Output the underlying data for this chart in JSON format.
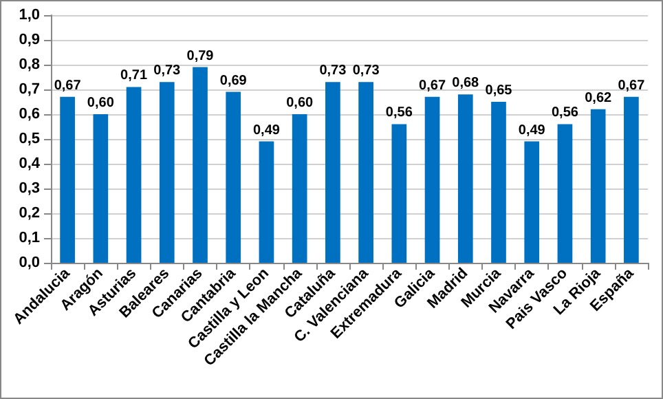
{
  "chart_data": {
    "type": "bar",
    "categories": [
      "Andalucia",
      "Aragón",
      "Asturias",
      "Baleares",
      "Canarias",
      "Cantabria",
      "Castilla y Leon",
      "Castilla la Mancha",
      "Cataluña",
      "C. Valenciana",
      "Extremadura",
      "Galicia",
      "Madrid",
      "Murcia",
      "Navarra",
      "Pais Vasco",
      "La Rioja",
      "España"
    ],
    "values": [
      0.67,
      0.6,
      0.71,
      0.73,
      0.79,
      0.69,
      0.49,
      0.6,
      0.73,
      0.73,
      0.56,
      0.67,
      0.68,
      0.65,
      0.49,
      0.56,
      0.62,
      0.67
    ],
    "value_labels": [
      "0,67",
      "0,60",
      "0,71",
      "0,73",
      "0,79",
      "0,69",
      "0,49",
      "0,60",
      "0,73",
      "0,73",
      "0,56",
      "0,67",
      "0,68",
      "0,65",
      "0,49",
      "0,56",
      "0,62",
      "0,67"
    ],
    "color": "#0070c0",
    "ylim": [
      0,
      1
    ],
    "yticks": [
      {
        "value": 0,
        "label": "0,0"
      },
      {
        "value": 0.1,
        "label": "0,1"
      },
      {
        "value": 0.2,
        "label": "0,2"
      },
      {
        "value": 0.3,
        "label": "0,3"
      },
      {
        "value": 0.4,
        "label": "0,4"
      },
      {
        "value": 0.5,
        "label": "0,5"
      },
      {
        "value": 0.6,
        "label": "0,6"
      },
      {
        "value": 0.7,
        "label": "0,7"
      },
      {
        "value": 0.8,
        "label": "0,8"
      },
      {
        "value": 0.9,
        "label": "0,9"
      },
      {
        "value": 1,
        "label": "1,0"
      }
    ],
    "grid": true
  }
}
